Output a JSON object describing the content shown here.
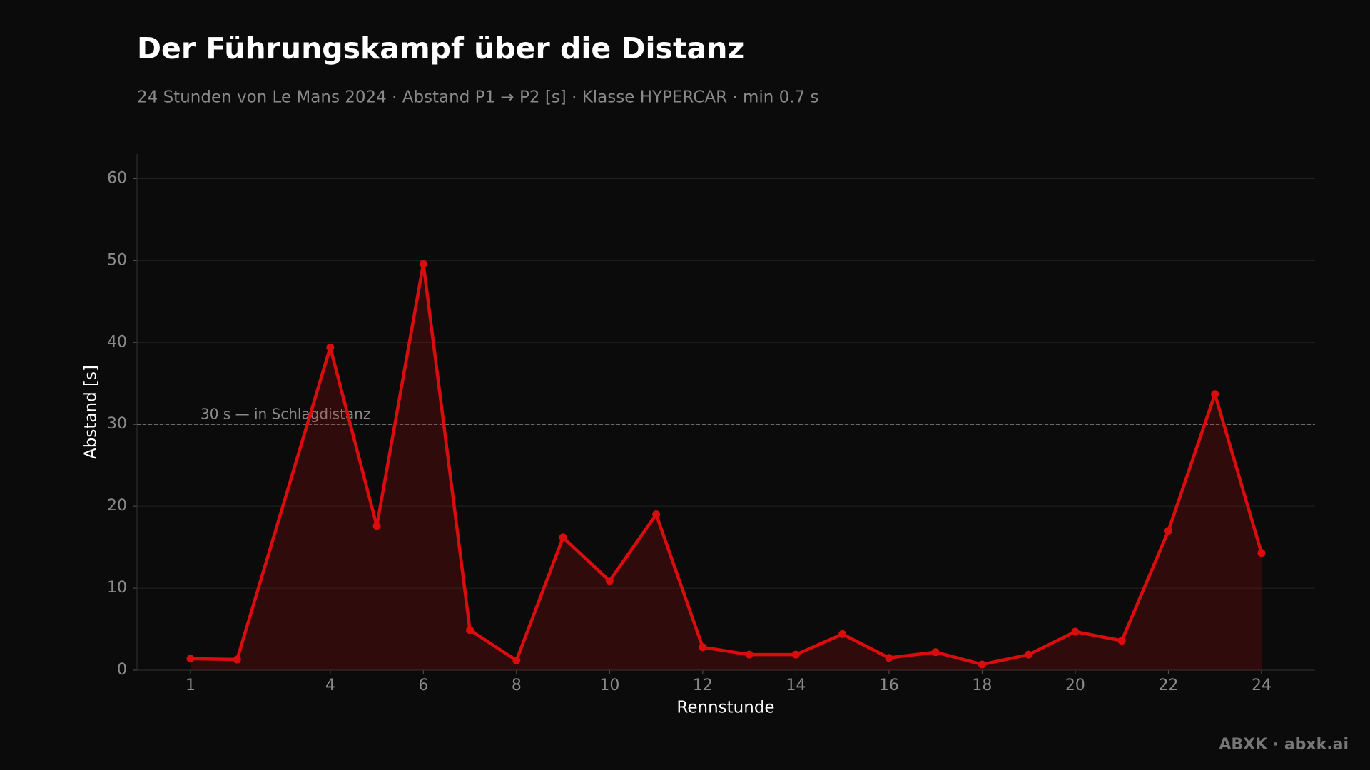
{
  "chart_data": {
    "type": "line",
    "title": "Der Führungskampf über die Distanz",
    "subtitle": "24 Stunden von Le Mans 2024 · Abstand P1 → P2 [s] · Klasse HYPERCAR · min 0.7 s",
    "x_label": "Rennstunde",
    "y_label": "Abstand [s]",
    "x": [
      1,
      2,
      4,
      5,
      6,
      7,
      8,
      9,
      10,
      11,
      12,
      13,
      14,
      15,
      16,
      17,
      18,
      19,
      20,
      21,
      22,
      23,
      24
    ],
    "series": [
      {
        "name": "Abstand P1 → P2",
        "color": "#d90d0d",
        "values": [
          1.4,
          1.3,
          39.4,
          17.6,
          49.6,
          4.9,
          1.2,
          16.2,
          10.9,
          19.0,
          2.8,
          1.9,
          1.9,
          4.4,
          1.5,
          2.2,
          0.7,
          1.9,
          4.7,
          3.6,
          17.0,
          33.7,
          14.3
        ]
      }
    ],
    "xlim": [
      -0.15,
      25.15
    ],
    "ylim": [
      0,
      63
    ],
    "xticks": [
      1,
      4,
      6,
      8,
      10,
      12,
      14,
      16,
      18,
      20,
      22,
      24
    ],
    "yticks": [
      0,
      10,
      20,
      30,
      40,
      50,
      60
    ],
    "grid": true,
    "reference_line": {
      "value": 30,
      "label": "30 s — in Schlagdistanz"
    },
    "footer": "ABXK · abxk.ai"
  }
}
